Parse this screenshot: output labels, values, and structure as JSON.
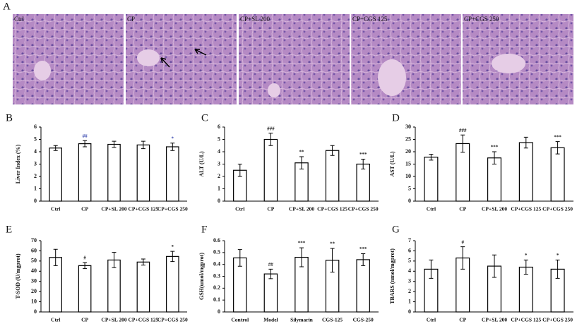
{
  "image_panel": {
    "letter": "A",
    "labels": [
      "Ctrl",
      "CP",
      "CP+SL 200",
      "CP+CGS 125",
      "CP+CGS 250"
    ]
  },
  "chart_data": [
    {
      "type": "bar",
      "panel_label": "B",
      "y_label": "Liver Index (%)",
      "categories": [
        "Ctrl",
        "CP",
        "CP+SL 200",
        "CP+CGS 125",
        "CP+CGS 250"
      ],
      "values": [
        4.3,
        4.65,
        4.6,
        4.55,
        4.4
      ],
      "errors": [
        0.2,
        0.25,
        0.25,
        0.3,
        0.3
      ],
      "annotations": [
        null,
        "##",
        null,
        null,
        "*"
      ],
      "annotation_color": "#3b4bb0",
      "color": "#ffffff",
      "ylim": [
        0,
        6
      ],
      "yticks": [
        0,
        1,
        2,
        3,
        4,
        5,
        6
      ]
    },
    {
      "type": "bar",
      "panel_label": "C",
      "y_label": "ALT (U/L)",
      "categories": [
        "Ctrl",
        "CP",
        "CP+SL 200",
        "CP+CGS 125",
        "CP+CGS 250"
      ],
      "values": [
        2.5,
        5.0,
        3.1,
        4.1,
        3.0
      ],
      "errors": [
        0.5,
        0.5,
        0.5,
        0.4,
        0.4
      ],
      "annotations": [
        null,
        "###",
        "**",
        null,
        "***"
      ],
      "annotation_color": "#222222",
      "color": "#ffffff",
      "ylim": [
        0,
        6
      ],
      "yticks": [
        0,
        1,
        2,
        3,
        4,
        5,
        6
      ]
    },
    {
      "type": "bar",
      "panel_label": "D",
      "y_label": "AST (U/L)",
      "categories": [
        "Ctrl",
        "CP",
        "CP+SL 200",
        "CP+CGS 125",
        "CP+CGS 250"
      ],
      "values": [
        17.8,
        23.3,
        17.5,
        23.7,
        21.6
      ],
      "errors": [
        1.2,
        3.5,
        2.5,
        2.2,
        2.5
      ],
      "annotations": [
        null,
        "###",
        "***",
        null,
        "***"
      ],
      "annotation_color": "#222222",
      "color": "#ffffff",
      "ylim": [
        0,
        30
      ],
      "yticks": [
        0,
        5,
        10,
        15,
        20,
        25,
        30
      ]
    },
    {
      "type": "bar",
      "panel_label": "E",
      "y_label": "T-SOD (U/mgprot)",
      "categories": [
        "Ctrl",
        "CP",
        "CP+SL 200",
        "CP+CGS 125",
        "CP+CGS 250"
      ],
      "values": [
        53.5,
        45.5,
        51,
        49,
        54.5
      ],
      "errors": [
        8,
        3,
        7.5,
        3,
        5
      ],
      "annotations": [
        null,
        "#",
        null,
        null,
        "*"
      ],
      "annotation_color": "#222222",
      "color": "#ffffff",
      "ylim": [
        0,
        70
      ],
      "yticks": [
        0,
        10,
        20,
        30,
        40,
        50,
        60,
        70
      ]
    },
    {
      "type": "bar",
      "panel_label": "F",
      "y_label": "GSH(umol/mgprot)",
      "categories": [
        "Control",
        "Model",
        "Silymarin",
        "CGS-125",
        "CGS-250"
      ],
      "values": [
        0.455,
        0.32,
        0.46,
        0.435,
        0.44
      ],
      "errors": [
        0.07,
        0.04,
        0.08,
        0.1,
        0.05
      ],
      "annotations": [
        null,
        "##",
        "***",
        "**",
        "***"
      ],
      "annotation_color": "#222222",
      "color": "#ffffff",
      "ylim": [
        0,
        0.6
      ],
      "yticks": [
        0,
        0.1,
        0.2,
        0.3,
        0.4,
        0.5,
        0.6
      ]
    },
    {
      "type": "bar",
      "panel_label": "G",
      "y_label": "TBARS (nmol/mgprot)",
      "categories": [
        "Ctrl",
        "CP",
        "CP+SL 200",
        "CP+CGS 125",
        "CP+CGS 250"
      ],
      "values": [
        4.2,
        5.3,
        4.5,
        4.4,
        4.2
      ],
      "errors": [
        0.9,
        1.1,
        1.1,
        0.7,
        0.9
      ],
      "annotations": [
        null,
        "#",
        null,
        "*",
        "*"
      ],
      "annotation_color": "#222222",
      "color": "#ffffff",
      "ylim": [
        0,
        7
      ],
      "yticks": [
        0,
        1,
        2,
        3,
        4,
        5,
        6,
        7
      ]
    }
  ]
}
